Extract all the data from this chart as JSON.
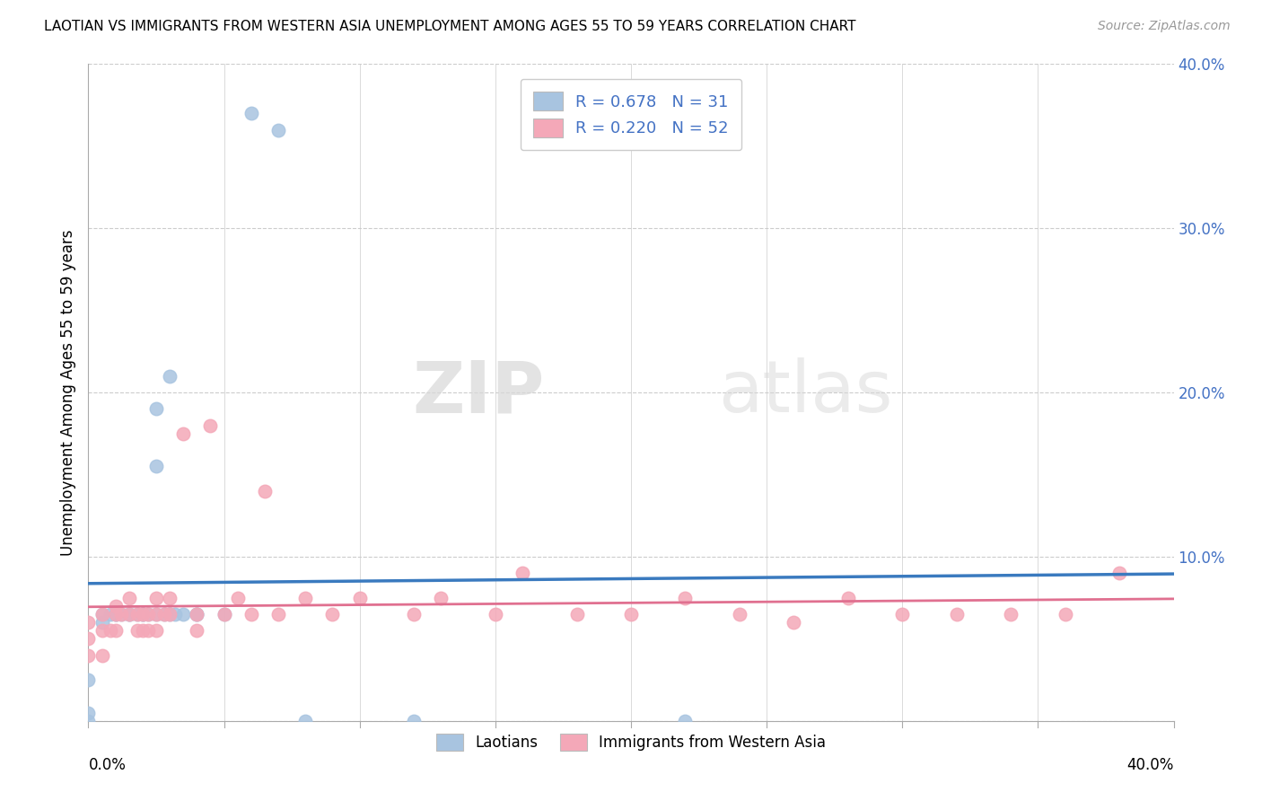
{
  "title": "LAOTIAN VS IMMIGRANTS FROM WESTERN ASIA UNEMPLOYMENT AMONG AGES 55 TO 59 YEARS CORRELATION CHART",
  "source": "Source: ZipAtlas.com",
  "ylabel": "Unemployment Among Ages 55 to 59 years",
  "laotian_R": 0.678,
  "laotian_N": 31,
  "western_asia_R": 0.22,
  "western_asia_N": 52,
  "laotian_color": "#a8c4e0",
  "western_asia_color": "#f4a8b8",
  "laotian_line_color": "#3a7abf",
  "western_asia_line_color": "#e07090",
  "laotian_scatter_x": [
    0.0,
    0.0,
    0.0,
    0.005,
    0.005,
    0.008,
    0.01,
    0.01,
    0.012,
    0.015,
    0.015,
    0.018,
    0.02,
    0.02,
    0.022,
    0.025,
    0.025,
    0.025,
    0.028,
    0.03,
    0.03,
    0.032,
    0.035,
    0.04,
    0.04,
    0.05,
    0.06,
    0.07,
    0.08,
    0.12,
    0.22
  ],
  "laotian_scatter_y": [
    0.0,
    0.005,
    0.025,
    0.06,
    0.065,
    0.065,
    0.065,
    0.065,
    0.065,
    0.065,
    0.065,
    0.065,
    0.065,
    0.065,
    0.065,
    0.155,
    0.19,
    0.065,
    0.065,
    0.21,
    0.065,
    0.065,
    0.065,
    0.065,
    0.065,
    0.065,
    0.37,
    0.36,
    0.0,
    0.0,
    0.0
  ],
  "western_asia_scatter_x": [
    0.0,
    0.0,
    0.0,
    0.005,
    0.005,
    0.005,
    0.008,
    0.01,
    0.01,
    0.01,
    0.012,
    0.015,
    0.015,
    0.018,
    0.018,
    0.02,
    0.02,
    0.022,
    0.022,
    0.025,
    0.025,
    0.025,
    0.028,
    0.03,
    0.03,
    0.035,
    0.04,
    0.04,
    0.045,
    0.05,
    0.055,
    0.06,
    0.065,
    0.07,
    0.08,
    0.09,
    0.1,
    0.12,
    0.13,
    0.15,
    0.16,
    0.18,
    0.2,
    0.22,
    0.24,
    0.26,
    0.28,
    0.3,
    0.32,
    0.34,
    0.36,
    0.38
  ],
  "western_asia_scatter_y": [
    0.04,
    0.05,
    0.06,
    0.04,
    0.055,
    0.065,
    0.055,
    0.055,
    0.065,
    0.07,
    0.065,
    0.065,
    0.075,
    0.055,
    0.065,
    0.055,
    0.065,
    0.055,
    0.065,
    0.055,
    0.065,
    0.075,
    0.065,
    0.065,
    0.075,
    0.175,
    0.055,
    0.065,
    0.18,
    0.065,
    0.075,
    0.065,
    0.14,
    0.065,
    0.075,
    0.065,
    0.075,
    0.065,
    0.075,
    0.065,
    0.09,
    0.065,
    0.065,
    0.075,
    0.065,
    0.06,
    0.075,
    0.065,
    0.065,
    0.065,
    0.065,
    0.09
  ]
}
